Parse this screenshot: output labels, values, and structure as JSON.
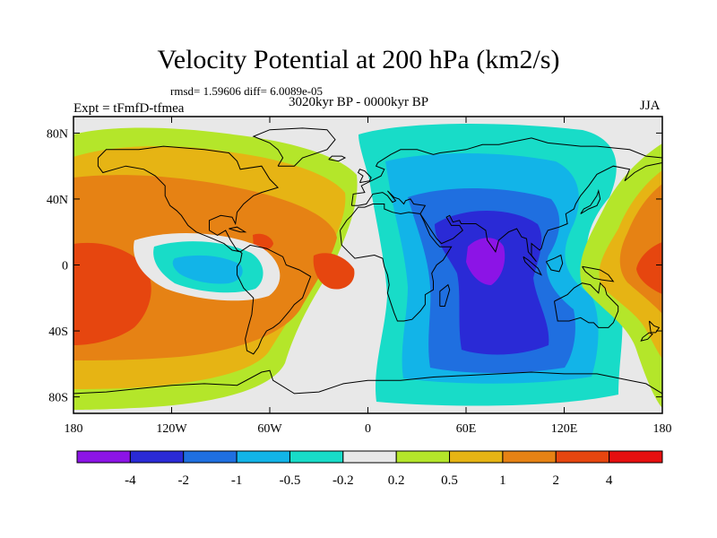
{
  "title": "Velocity Potential at 200 hPa (km2/s)",
  "stats_line": "rmsd= 1.59606 diff= 6.0089e-05",
  "period_label": "3020kyr BP - 0000kyr BP",
  "experiment_label": "Expt = tFmfD-tfmea",
  "season_label": "JJA",
  "map": {
    "projection": "cylindrical-equidistant",
    "lon_range": [
      -180,
      180
    ],
    "lat_range": [
      -90,
      90
    ],
    "x_ticks": [
      {
        "value": -180,
        "label": "180"
      },
      {
        "value": -120,
        "label": "120W"
      },
      {
        "value": -60,
        "label": "60W"
      },
      {
        "value": 0,
        "label": "0"
      },
      {
        "value": 60,
        "label": "60E"
      },
      {
        "value": 120,
        "label": "120E"
      },
      {
        "value": 180,
        "label": "180"
      }
    ],
    "y_ticks": [
      {
        "value": 80,
        "label": "80N"
      },
      {
        "value": 40,
        "label": "40N"
      },
      {
        "value": 0,
        "label": "0"
      },
      {
        "value": -40,
        "label": "40S"
      },
      {
        "value": -80,
        "label": "80S"
      }
    ],
    "background_color": "#e8e8e8",
    "coastline_color": "#000000"
  },
  "colorbar": {
    "colors": [
      "#8c14e6",
      "#2a2ad6",
      "#1f6fe0",
      "#12b4e8",
      "#18dcc8",
      "#e8e8e8",
      "#b4e62a",
      "#e6b414",
      "#e68214",
      "#e6460f",
      "#e60f0f"
    ],
    "labels": [
      "-4",
      "-2",
      "-1",
      "-0.5",
      "-0.2",
      "0.2",
      "0.5",
      "1",
      "2",
      "4"
    ]
  }
}
